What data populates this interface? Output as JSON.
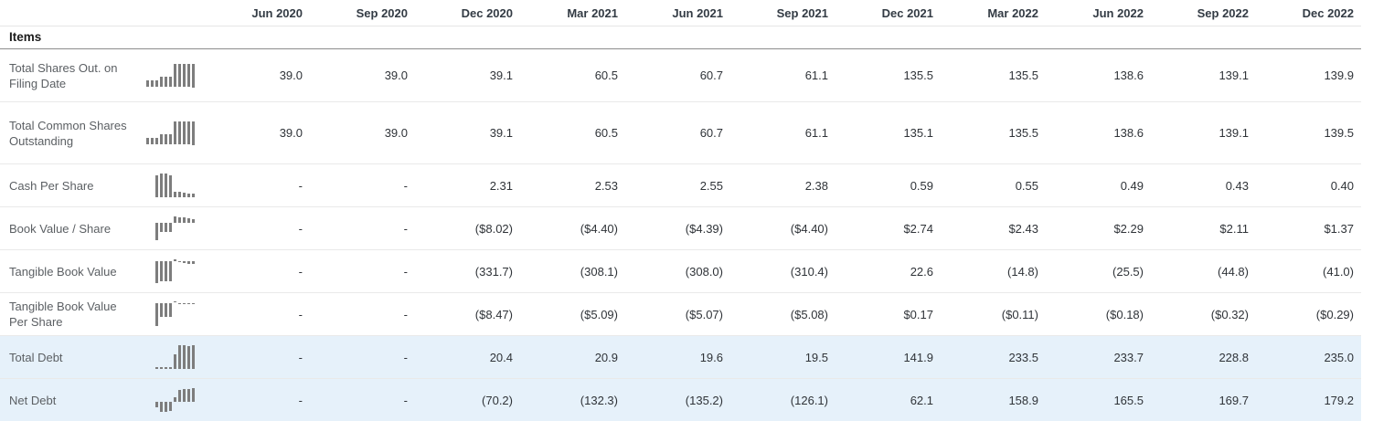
{
  "page": {
    "background": "#ffffff",
    "highlight_color": "#e6f1fa",
    "bar_color": "#7d7d7d",
    "header_text_color": "#333b44"
  },
  "table": {
    "items_label": "Items",
    "columns": [
      "Jun 2020",
      "Sep 2020",
      "Dec 2020",
      "Mar 2021",
      "Jun 2021",
      "Sep 2021",
      "Dec 2021",
      "Mar 2022",
      "Jun 2022",
      "Sep 2022",
      "Dec 2022"
    ],
    "rows": [
      {
        "label": "Total Shares Out. on Filing Date",
        "values": [
          "39.0",
          "39.0",
          "39.1",
          "60.5",
          "60.7",
          "61.1",
          "135.5",
          "135.5",
          "138.6",
          "139.1",
          "139.9"
        ],
        "highlighted": false
      },
      {
        "label": "Total Common Shares Outstanding",
        "values": [
          "39.0",
          "39.0",
          "39.1",
          "60.5",
          "60.7",
          "61.1",
          "135.1",
          "135.5",
          "138.6",
          "139.1",
          "139.5"
        ],
        "highlighted": false
      },
      {
        "label": "Cash Per Share",
        "values": [
          "-",
          "-",
          "2.31",
          "2.53",
          "2.55",
          "2.38",
          "0.59",
          "0.55",
          "0.49",
          "0.43",
          "0.40"
        ],
        "highlighted": false
      },
      {
        "label": "Book Value / Share",
        "values": [
          "-",
          "-",
          "($8.02)",
          "($4.40)",
          "($4.39)",
          "($4.40)",
          "$2.74",
          "$2.43",
          "$2.29",
          "$2.11",
          "$1.37"
        ],
        "highlighted": false
      },
      {
        "label": "Tangible Book Value",
        "values": [
          "-",
          "-",
          "(331.7)",
          "(308.1)",
          "(308.0)",
          "(310.4)",
          "22.6",
          "(14.8)",
          "(25.5)",
          "(44.8)",
          "(41.0)"
        ],
        "highlighted": false
      },
      {
        "label": "Tangible Book Value Per Share",
        "values": [
          "-",
          "-",
          "($8.47)",
          "($5.09)",
          "($5.07)",
          "($5.08)",
          "$0.17",
          "($0.11)",
          "($0.18)",
          "($0.32)",
          "($0.29)"
        ],
        "highlighted": false
      },
      {
        "label": "Total Debt",
        "values": [
          "-",
          "-",
          "20.4",
          "20.9",
          "19.6",
          "19.5",
          "141.9",
          "233.5",
          "233.7",
          "228.8",
          "235.0"
        ],
        "highlighted": true
      },
      {
        "label": "Net Debt",
        "values": [
          "-",
          "-",
          "(70.2)",
          "(132.3)",
          "(135.2)",
          "(126.1)",
          "62.1",
          "158.9",
          "165.5",
          "169.7",
          "179.2"
        ],
        "highlighted": true
      }
    ]
  }
}
